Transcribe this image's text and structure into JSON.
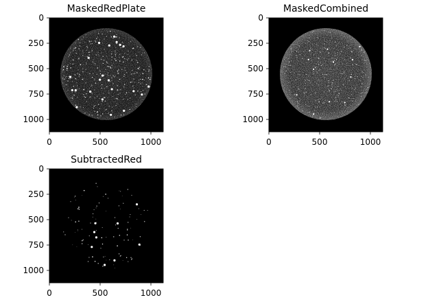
{
  "figure": {
    "background": "#ffffff",
    "panels": [
      {
        "title": "MaskedRedPlate",
        "image_kind": "circular-plate-bright-speckles",
        "xticks": [
          "0",
          "500",
          "1000"
        ],
        "yticks": [
          "0",
          "250",
          "500",
          "750",
          "1000"
        ],
        "xlim": [
          0,
          1120
        ],
        "ylim": [
          1120,
          0
        ]
      },
      {
        "title": "MaskedCombined",
        "image_kind": "circular-plate-textured",
        "xticks": [
          "0",
          "500",
          "1000"
        ],
        "yticks": [
          "0",
          "250",
          "500",
          "750",
          "1000"
        ],
        "xlim": [
          0,
          1120
        ],
        "ylim": [
          1120,
          0
        ]
      },
      {
        "title": "SubtractedRed",
        "image_kind": "sparse-bright-dots",
        "xticks": [
          "0",
          "500",
          "1000"
        ],
        "yticks": [
          "0",
          "250",
          "500",
          "750",
          "1000"
        ],
        "xlim": [
          0,
          1120
        ],
        "ylim": [
          1120,
          0
        ]
      }
    ],
    "colors": {
      "image_background": "#000000",
      "axis": "#000000",
      "page": "#ffffff"
    }
  }
}
